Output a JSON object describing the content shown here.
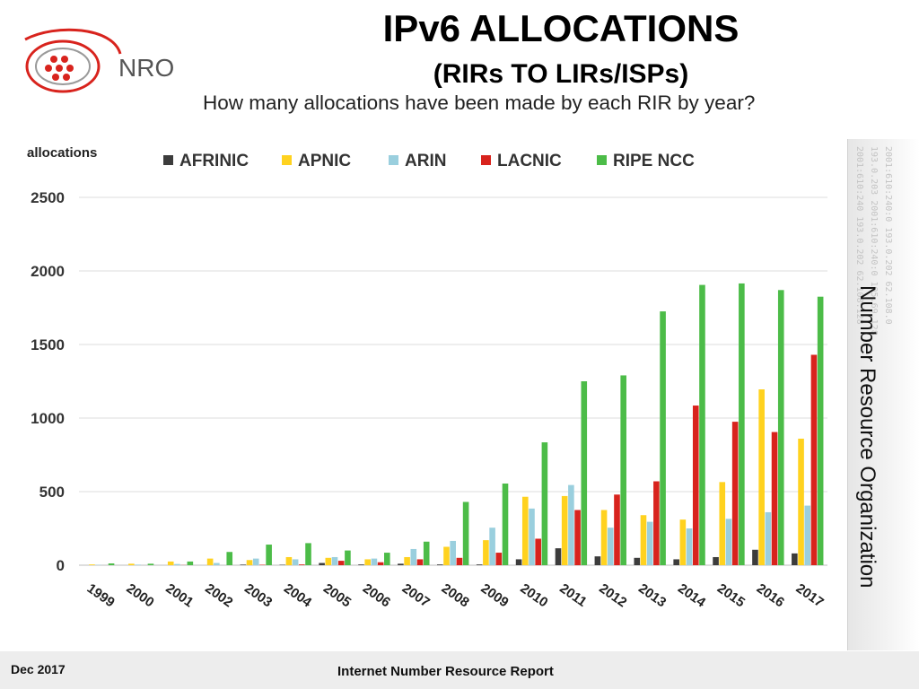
{
  "header": {
    "logo_text": "NRO",
    "title": "IPv6 ALLOCATIONS",
    "subtitle": "(RIRs TO LIRs/ISPs)",
    "question": "How many allocations have been made by each RIR by year?"
  },
  "side": {
    "label": "Number Resource Organization",
    "watermark_lines": [
      "2001:610:240 193.0.202 62.108.128",
      "193.0.203 2001:610:240:0 195.69.128",
      "2001:610:240:0 193.0.202 62.108.0"
    ]
  },
  "footer": {
    "date": "Dec 2017",
    "report": "Internet Number Resource Report"
  },
  "colors": {
    "AFRINIC": "#3c3c3c",
    "APNIC": "#ffd21f",
    "ARIN": "#9acfde",
    "LACNIC": "#d8231d",
    "RIPE NCC": "#4cbc48",
    "logo_red": "#d8231d"
  },
  "chart_data": {
    "type": "bar",
    "title": "IPv6 ALLOCATIONS",
    "xlabel": "",
    "ylabel": "allocations",
    "ylim": [
      0,
      2500
    ],
    "yticks": [
      0,
      500,
      1000,
      1500,
      2000,
      2500
    ],
    "legend_position": "top",
    "grid": true,
    "categories": [
      "1999",
      "2000",
      "2001",
      "2002",
      "2003",
      "2004",
      "2005",
      "2006",
      "2007",
      "2008",
      "2009",
      "2010",
      "2011",
      "2012",
      "2013",
      "2014",
      "2015",
      "2016",
      "2017"
    ],
    "series": [
      {
        "name": "AFRINIC",
        "values": [
          0,
          0,
          0,
          0,
          4,
          3,
          15,
          5,
          10,
          5,
          5,
          40,
          115,
          60,
          50,
          40,
          55,
          105,
          80
        ]
      },
      {
        "name": "APNIC",
        "values": [
          5,
          10,
          25,
          45,
          35,
          55,
          50,
          40,
          55,
          125,
          170,
          465,
          470,
          375,
          340,
          310,
          565,
          1195,
          860
        ]
      },
      {
        "name": "ARIN",
        "values": [
          2,
          4,
          8,
          15,
          45,
          40,
          55,
          45,
          110,
          165,
          255,
          385,
          545,
          255,
          295,
          250,
          315,
          360,
          405
        ]
      },
      {
        "name": "LACNIC",
        "values": [
          0,
          0,
          1,
          0,
          3,
          5,
          30,
          20,
          40,
          50,
          85,
          180,
          375,
          480,
          570,
          1085,
          975,
          905,
          1430
        ]
      },
      {
        "name": "RIPE NCC",
        "values": [
          12,
          10,
          25,
          90,
          140,
          150,
          100,
          85,
          160,
          430,
          555,
          835,
          1250,
          1290,
          1725,
          1905,
          1915,
          1870,
          1825
        ]
      }
    ]
  }
}
